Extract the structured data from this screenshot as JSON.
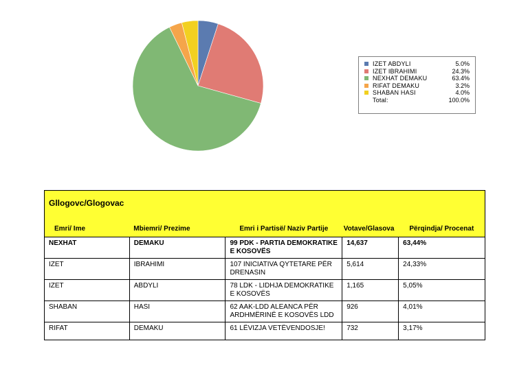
{
  "chart_data": {
    "type": "pie",
    "slices": [
      {
        "label": "IZET ABDYLI",
        "pct_label": "5.0%",
        "value": 5.0,
        "color": "#5b7bb0"
      },
      {
        "label": "IZET IBRAHIMI",
        "pct_label": "24.3%",
        "value": 24.3,
        "color": "#e07b74"
      },
      {
        "label": "NEXHAT DEMAKU",
        "pct_label": "63.4%",
        "value": 63.4,
        "color": "#80b874"
      },
      {
        "label": "RIFAT DEMAKU",
        "pct_label": "3.2%",
        "value": 3.2,
        "color": "#f5a54a"
      },
      {
        "label": "SHABAN HASI",
        "pct_label": "4.0%",
        "value": 4.0,
        "color": "#f2d020"
      }
    ],
    "total_label": "Total:",
    "total_value": "100.0%",
    "legend_position": "right"
  },
  "table": {
    "title": "Gllogovc/Glogovac",
    "headers": [
      "Emri/ Ime",
      "Mbiemri/ Prezime",
      "Emri i Partisë/ Naziv Partije",
      "Votave/Glasova",
      "Përqindja/ Procenat"
    ],
    "rows": [
      [
        "NEXHAT",
        "DEMAKU",
        "99 PDK - PARTIA DEMOKRATIKE E KOSOVËS",
        "14,637",
        "63,44%"
      ],
      [
        "IZET",
        "IBRAHIMI",
        "107 INICIATIVA QYTETARE PËR DRENASIN",
        "5,614",
        "24,33%"
      ],
      [
        "IZET",
        "ABDYLI",
        "78 LDK - LIDHJA DEMOKRATIKE E KOSOVËS",
        "1,165",
        "5,05%"
      ],
      [
        "SHABAN",
        "HASI",
        "62 AAK-LDD ALEANCA PËR ARDHMËRINË E KOSOVËS LDD",
        "926",
        "4,01%"
      ],
      [
        "RIFAT",
        "DEMAKU",
        "61 LËVIZJA VETËVENDOSJE!",
        "732",
        "3,17%"
      ]
    ]
  }
}
